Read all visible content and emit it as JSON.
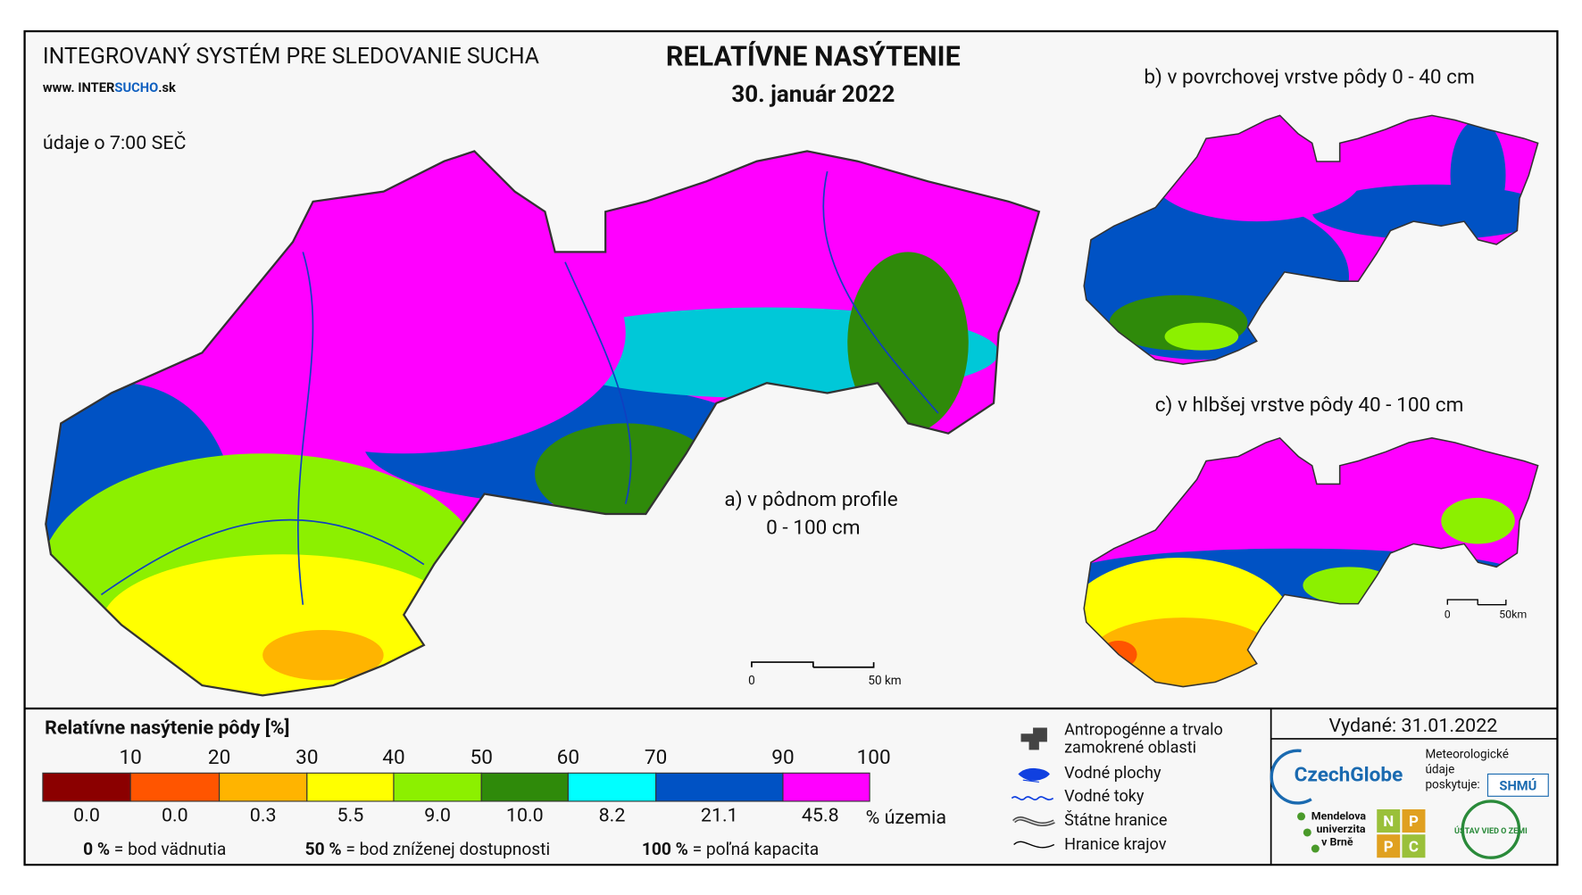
{
  "header": {
    "system": "INTEGROVANÝ SYSTÉM PRE SLEDOVANIE SUCHA",
    "url_prefix": "www. INTER",
    "url_highlight": "SUCHO",
    "url_suffix": ".sk",
    "time": "údaje o 7:00 SEČ"
  },
  "title": "RELATÍVNE NASÝTENIE",
  "date": "30. január 2022",
  "maps": [
    {
      "label": "a) v pôdnom profile",
      "label2": "0 - 100 cm",
      "scale_zero": "0",
      "scale_dist": "50 km"
    },
    {
      "label": "b) v povrchovej vrstve pôdy 0 - 40 cm"
    },
    {
      "label": "c) v hlbšej vrstve pôdy 40 - 100 cm",
      "scale_zero": "0",
      "scale_dist": "50km"
    }
  ],
  "legend": {
    "title": "Relatívne nasýtenie pôdy [%]",
    "thresholds": [
      "10",
      "20",
      "30",
      "40",
      "50",
      "60",
      "70",
      "90",
      "100"
    ],
    "classes": [
      {
        "color": "#8b0000",
        "share": "0.0"
      },
      {
        "color": "#ff5500",
        "share": "0.0"
      },
      {
        "color": "#ffb400",
        "share": "0.3"
      },
      {
        "color": "#ffff00",
        "share": "5.5"
      },
      {
        "color": "#8cf000",
        "share": "9.0"
      },
      {
        "color": "#2f8a0a",
        "share": "10.0"
      },
      {
        "color": "#00ffff",
        "share": "8.2"
      },
      {
        "color": "#0052c4",
        "share": "21.1"
      },
      {
        "color": "#ff00ff",
        "share": "45.8"
      }
    ],
    "unit": "% územia",
    "notes": [
      {
        "key": "0 %",
        "text": "= bod vädnutia"
      },
      {
        "key": "50 %",
        "text": "= bod zníženej dostupnosti"
      },
      {
        "key": "100 %",
        "text": "= poľná kapacita"
      }
    ]
  },
  "symbols": [
    "Antropogénne a trvalo zamokrené oblasti",
    "Vodné plochy",
    "Vodné toky",
    "Štátne hranice",
    "Hranice krajov"
  ],
  "issued": "Vydané: 31.01.2022",
  "logos": {
    "czechglobe": "CzechGlobe",
    "meteo": [
      "Meteorologické",
      "údaje",
      "poskytuje:"
    ],
    "shmu": "SHMÚ",
    "mendel": [
      "Mendelova",
      "univerzita",
      "v Brně"
    ],
    "nppc": [
      "N",
      "P",
      "P",
      "C"
    ],
    "ustav": "ÚSTAV VIED O ZEMI"
  }
}
